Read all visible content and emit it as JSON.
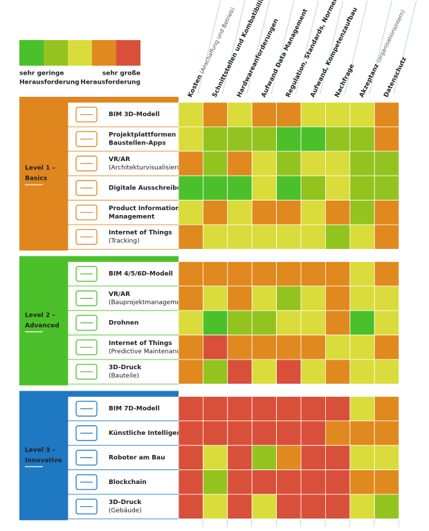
{
  "chart_data": {
    "type": "heatmap",
    "legend": {
      "colors": [
        "#4cc02a",
        "#93c31f",
        "#d9dc3a",
        "#e0891e",
        "#d9503a"
      ],
      "low_label": [
        "sehr geringe",
        "Herausforderung"
      ],
      "high_label": [
        "sehr große",
        "Herausforderung"
      ]
    },
    "columns": [
      {
        "label": "Kosten",
        "note": "(Anschaffung und Betrieb)"
      },
      {
        "label": "Schnittstellen und Kombatibilität"
      },
      {
        "label": "Hardwareanforderungen"
      },
      {
        "label": "Aufwand Data Management"
      },
      {
        "label": "Regulation, Standards, Normen"
      },
      {
        "label": "Aufwand, Kompetenzaufbau"
      },
      {
        "label": "Nachfrage"
      },
      {
        "label": "Akzeptanz",
        "note": "(organisationsintern)"
      },
      {
        "label": "Datenschutz"
      }
    ],
    "groups": [
      {
        "label": [
          "Level 1 –",
          "Basics"
        ],
        "color": "#e0861f",
        "rows": [
          {
            "name": [
              "BIM 3D-Modell"
            ],
            "levels": [
              3,
              4,
              3,
              4,
              4,
              3,
              3,
              3,
              4
            ]
          },
          {
            "name": [
              "Projektplattformen und",
              "Baustellen-Apps"
            ],
            "levels": [
              3,
              2,
              2,
              2,
              1,
              1,
              2,
              2,
              4
            ]
          },
          {
            "name": [
              "VR/AR"
            ],
            "note": "(Architekturvisualisierung)",
            "levels": [
              4,
              2,
              4,
              3,
              2,
              3,
              3,
              2,
              2
            ]
          },
          {
            "name": [
              "Digitale Ausschreibung"
            ],
            "levels": [
              1,
              1,
              1,
              3,
              1,
              2,
              3,
              2,
              2
            ]
          },
          {
            "name": [
              "Product Information",
              "Management"
            ],
            "levels": [
              3,
              4,
              3,
              4,
              4,
              3,
              4,
              2,
              4
            ]
          },
          {
            "name": [
              "Internet of Things"
            ],
            "note": "(Tracking)",
            "levels": [
              4,
              3,
              3,
              3,
              3,
              3,
              2,
              3,
              4
            ]
          }
        ]
      },
      {
        "label": [
          "Level 2 –",
          "Advanced"
        ],
        "color": "#4cc02a",
        "rows": [
          {
            "name": [
              "BIM 4/5/6D-Modell"
            ],
            "levels": [
              4,
              4,
              4,
              4,
              4,
              4,
              4,
              3,
              4
            ]
          },
          {
            "name": [
              "VR/AR"
            ],
            "note": "(Bauprojektmanagement)",
            "levels": [
              4,
              3,
              4,
              3,
              2,
              3,
              4,
              3,
              3
            ]
          },
          {
            "name": [
              "Drohnen"
            ],
            "levels": [
              3,
              1,
              2,
              2,
              3,
              3,
              4,
              1,
              3
            ]
          },
          {
            "name": [
              "Internet of Things"
            ],
            "note": "(Predictive Maintenance)",
            "levels": [
              4,
              5,
              4,
              4,
              4,
              4,
              3,
              3,
              4
            ]
          },
          {
            "name": [
              "3D-Druck"
            ],
            "note": "(Bauteile)",
            "levels": [
              4,
              2,
              5,
              3,
              5,
              3,
              4,
              3,
              3
            ]
          }
        ]
      },
      {
        "label": [
          "Level 3 –",
          "Innovative"
        ],
        "color": "#1e78c2",
        "rows": [
          {
            "name": [
              "BIM 7D-Modell"
            ],
            "levels": [
              5,
              5,
              5,
              5,
              5,
              5,
              5,
              3,
              4
            ]
          },
          {
            "name": [
              "Künstliche Intelligenz"
            ],
            "levels": [
              5,
              5,
              5,
              5,
              5,
              5,
              4,
              4,
              4
            ]
          },
          {
            "name": [
              "Roboter am Bau"
            ],
            "levels": [
              5,
              3,
              5,
              2,
              4,
              5,
              5,
              3,
              3
            ]
          },
          {
            "name": [
              "Blockchain"
            ],
            "levels": [
              5,
              2,
              5,
              5,
              5,
              5,
              5,
              4,
              4
            ]
          },
          {
            "name": [
              "3D-Druck"
            ],
            "note": "(Gebäude)",
            "levels": [
              5,
              3,
              5,
              3,
              5,
              5,
              5,
              3,
              2
            ]
          }
        ]
      }
    ]
  }
}
